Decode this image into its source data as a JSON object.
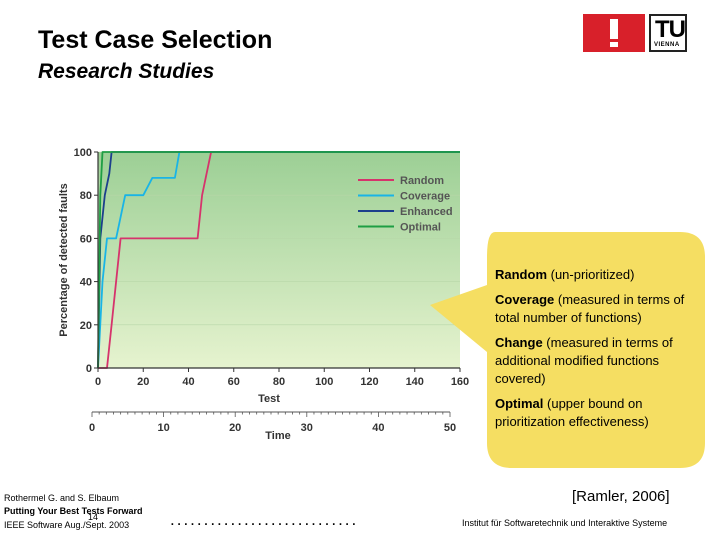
{
  "slide": {
    "title": "Test Case Selection",
    "subtitle": "Research Studies",
    "page_number": "14"
  },
  "logo": {
    "text": "TU",
    "subtext": "VIENNA"
  },
  "callout": {
    "items": [
      {
        "term": "Random",
        "desc": " (un-prioritized)"
      },
      {
        "term": "Coverage",
        "desc": " (measured in terms of total number of functions)"
      },
      {
        "term": "Change",
        "desc": " (measured in terms of additional modified functions covered)"
      },
      {
        "term": "Optimal",
        "desc": " (upper bound on prioritization effectiveness)"
      }
    ],
    "bg_color": "#f5de62"
  },
  "citation": "[Ramler, 2006]",
  "reference": {
    "authors": "Rothermel G. and S. Elbaum",
    "paper": "Putting Your Best Tests Forward",
    "venue": "IEEE Software Aug./Sept. 2003"
  },
  "footer": {
    "dots": "............................",
    "institute": "Institut für Softwaretechnik und Interaktive Systeme"
  },
  "chart_data": {
    "type": "line",
    "ylabel": "Percentage of detected faults",
    "xlabel": "Test",
    "x2label": "Time",
    "xlim": [
      0,
      160
    ],
    "ylim": [
      0,
      100
    ],
    "xticks": [
      0,
      20,
      40,
      60,
      80,
      100,
      120,
      140,
      160
    ],
    "yticks": [
      0,
      20,
      40,
      60,
      80,
      100
    ],
    "x2ticks": [
      0,
      10,
      20,
      30,
      40,
      50
    ],
    "x2lim": [
      0,
      50
    ],
    "legend_position": "top-right",
    "series": [
      {
        "name": "Random",
        "color": "#d6336c",
        "x": [
          0,
          4,
          6,
          8,
          10,
          12,
          44,
          46,
          48,
          50,
          160
        ],
        "y": [
          0,
          0,
          20,
          40,
          60,
          60,
          60,
          80,
          90,
          100,
          100
        ]
      },
      {
        "name": "Coverage",
        "color": "#19b4e6",
        "x": [
          0,
          2,
          4,
          8,
          12,
          20,
          24,
          30,
          34,
          36,
          160
        ],
        "y": [
          0,
          40,
          60,
          60,
          80,
          80,
          88,
          88,
          88,
          100,
          100
        ]
      },
      {
        "name": "Enhanced",
        "color": "#1c3f8c",
        "x": [
          0,
          1,
          3,
          5,
          6,
          160
        ],
        "y": [
          0,
          60,
          80,
          90,
          100,
          100
        ]
      },
      {
        "name": "Optimal",
        "color": "#1e9e44",
        "x": [
          0,
          1,
          2,
          160
        ],
        "y": [
          0,
          80,
          100,
          100
        ]
      }
    ]
  }
}
